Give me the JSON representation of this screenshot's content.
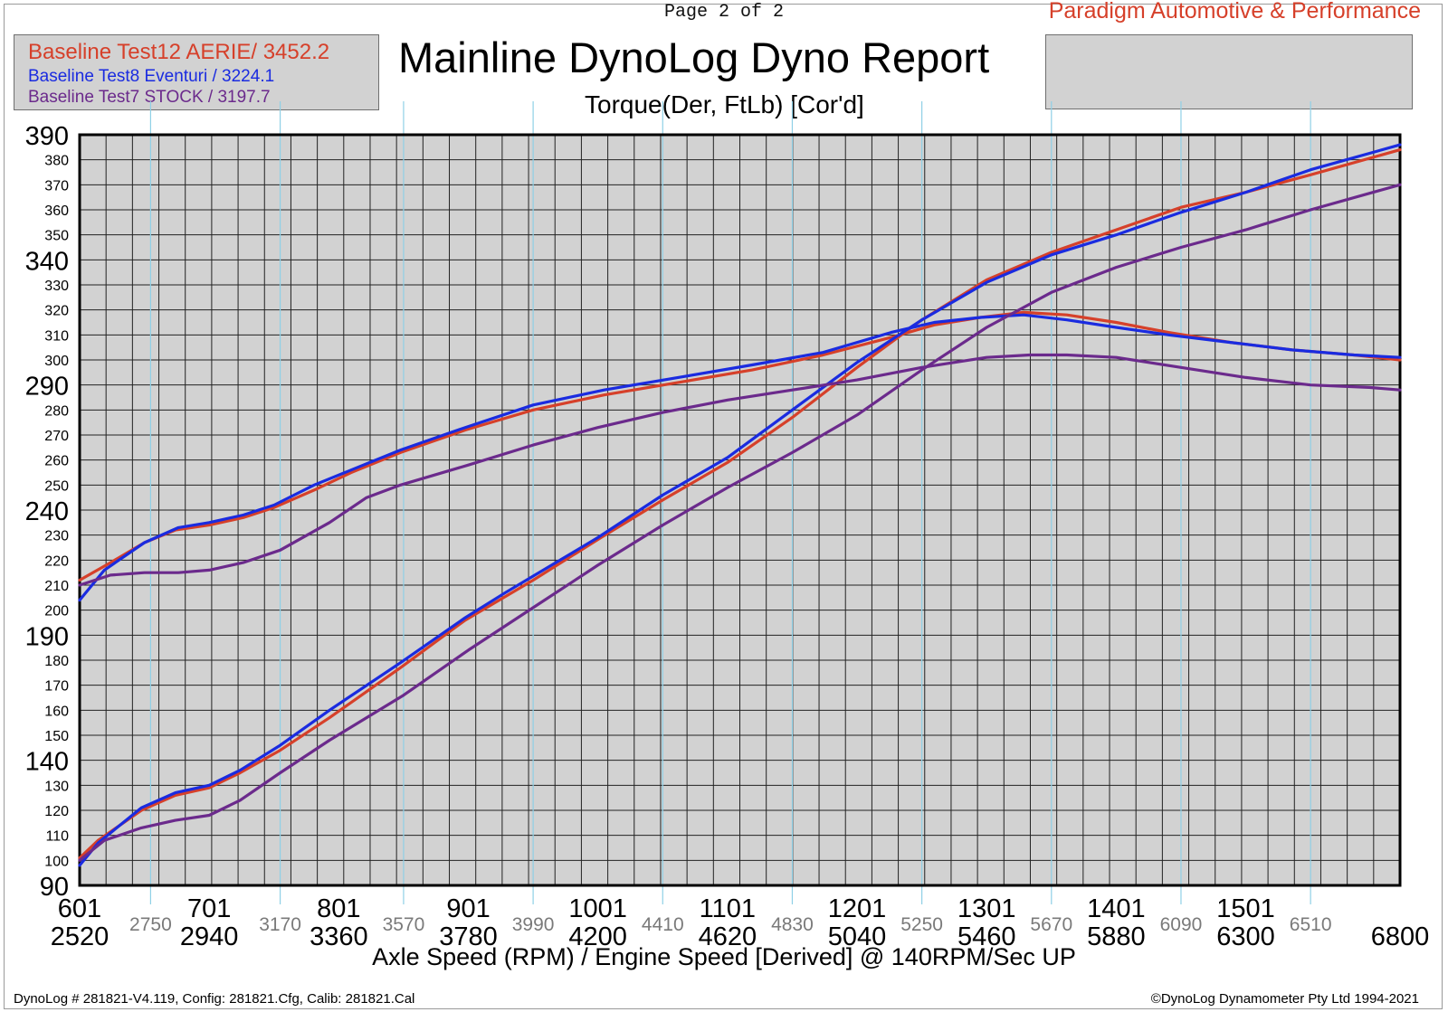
{
  "page_label": "Page 2 of 2",
  "company": "Paradigm Automotive & Performance",
  "title": "Mainline DynoLog Dyno Report",
  "footer_left": "DynoLog # 281821-V4.119, Config: 281821.Cfg, Calib: 281821.Cal",
  "footer_right": "©DynoLog Dynamometer Pty Ltd 1994-2021",
  "colors": {
    "red": "#d6402a",
    "blue": "#1a2be0",
    "purple": "#6b2a8c",
    "plot_bg": "#d2d2d2",
    "grid": "#222222",
    "ref_line": "#8fd0e6"
  },
  "legend": [
    {
      "label": "Baseline Test12 AERIE/ 3452.2",
      "color": "#d6402a"
    },
    {
      "label": "Baseline Test8 Eventuri / 3224.1",
      "color": "#1a2be0"
    },
    {
      "label": "Baseline Test7 STOCK / 3197.7",
      "color": "#6b2a8c"
    }
  ],
  "chart_data": {
    "type": "line",
    "title": "Mainline DynoLog Dyno Report",
    "subtitle": "Torque(Der, FtLb) [Cor'd]",
    "xlabel": "Axle Speed (RPM) / Engine Speed [Derived] @ 140RPM/Sec UP",
    "ylabel": "",
    "xlim": [
      2520,
      6800
    ],
    "ylim": [
      90,
      390
    ],
    "y_major_ticks": [
      90,
      140,
      190,
      240,
      290,
      340,
      390
    ],
    "y_minor_ticks": [
      100,
      110,
      120,
      130,
      150,
      160,
      170,
      180,
      200,
      210,
      220,
      230,
      250,
      260,
      270,
      280,
      300,
      310,
      320,
      330,
      350,
      360,
      370,
      380
    ],
    "x_major_ticks": [
      {
        "value": 2520,
        "axle": "601",
        "engine": "2520"
      },
      {
        "value": 2940,
        "axle": "701",
        "engine": "2940"
      },
      {
        "value": 3360,
        "axle": "801",
        "engine": "3360"
      },
      {
        "value": 3780,
        "axle": "901",
        "engine": "3780"
      },
      {
        "value": 4200,
        "axle": "1001",
        "engine": "4200"
      },
      {
        "value": 4620,
        "axle": "1101",
        "engine": "4620"
      },
      {
        "value": 5040,
        "axle": "1201",
        "engine": "5040"
      },
      {
        "value": 5460,
        "axle": "1301",
        "engine": "5460"
      },
      {
        "value": 5880,
        "axle": "1401",
        "engine": "5880"
      },
      {
        "value": 6300,
        "axle": "1501",
        "engine": "6300"
      },
      {
        "value": 6800,
        "axle": "",
        "engine": "6800"
      }
    ],
    "x_ref_ticks": [
      2750,
      3170,
      3570,
      3990,
      4410,
      4830,
      5250,
      5670,
      6090,
      6510
    ],
    "grid": true,
    "legend_position": "top-left",
    "series": [
      {
        "name": "Baseline Test12 AERIE/ 3452.2",
        "color": "#d6402a",
        "torque": {
          "x": [
            2520,
            2620,
            2730,
            2830,
            2940,
            3050,
            3150,
            3280,
            3400,
            3560,
            3770,
            3990,
            4220,
            4460,
            4700,
            4930,
            5150,
            5290,
            5440,
            5580,
            5720,
            5880,
            6050,
            6250,
            6450,
            6650,
            6800
          ],
          "y": [
            212,
            219,
            227,
            232,
            234,
            237,
            241,
            248,
            255,
            263,
            272,
            280,
            286,
            291,
            296,
            302,
            309,
            314,
            317,
            319,
            318,
            315,
            311,
            307,
            304,
            302,
            300
          ]
        },
        "power": {
          "x": [
            2520,
            2580,
            2720,
            2830,
            2940,
            3040,
            3170,
            3330,
            3560,
            3770,
            3990,
            4210,
            4410,
            4620,
            4830,
            5040,
            5250,
            5460,
            5670,
            5880,
            6090,
            6300,
            6510,
            6800
          ],
          "y": [
            101,
            108,
            120,
            126,
            129,
            135,
            144,
            157,
            177,
            196,
            212,
            229,
            244,
            259,
            277,
            297,
            316,
            332,
            343,
            352,
            361,
            367,
            374,
            384
          ]
        }
      },
      {
        "name": "Baseline Test8 Eventuri / 3224.1",
        "color": "#1a2be0",
        "torque": {
          "x": [
            2520,
            2600,
            2730,
            2840,
            2940,
            3050,
            3150,
            3280,
            3400,
            3560,
            3770,
            3990,
            4220,
            4460,
            4700,
            4930,
            5150,
            5290,
            5440,
            5580,
            5720,
            5880,
            6050,
            6250,
            6450,
            6650,
            6800
          ],
          "y": [
            204,
            216,
            227,
            233,
            235,
            238,
            242,
            250,
            256,
            264,
            273,
            282,
            288,
            293,
            298,
            303,
            311,
            315,
            317,
            318,
            316,
            313,
            310,
            307,
            304,
            302,
            301
          ]
        },
        "power": {
          "x": [
            2520,
            2580,
            2720,
            2830,
            2940,
            3040,
            3170,
            3330,
            3560,
            3770,
            3900,
            4200,
            4410,
            4620,
            4830,
            5040,
            5250,
            5460,
            5670,
            5880,
            6090,
            6300,
            6510,
            6800
          ],
          "y": [
            98,
            107,
            121,
            127,
            130,
            136,
            146,
            160,
            179,
            197,
            207,
            229,
            246,
            261,
            280,
            299,
            316,
            331,
            342,
            350,
            359,
            367,
            376,
            386
          ]
        }
      },
      {
        "name": "Baseline Test7 STOCK / 3197.7",
        "color": "#6b2a8c",
        "torque": {
          "x": [
            2520,
            2620,
            2730,
            2840,
            2940,
            3050,
            3170,
            3330,
            3450,
            3560,
            3780,
            3990,
            4200,
            4410,
            4620,
            4830,
            5040,
            5250,
            5460,
            5600,
            5720,
            5880,
            6090,
            6300,
            6510,
            6700,
            6800
          ],
          "y": [
            210,
            214,
            215,
            215,
            216,
            219,
            224,
            235,
            245,
            250,
            258,
            266,
            273,
            279,
            284,
            288,
            292,
            297,
            301,
            302,
            302,
            301,
            297,
            293,
            290,
            289,
            288
          ]
        },
        "power": {
          "x": [
            2520,
            2600,
            2720,
            2830,
            2940,
            3040,
            3170,
            3330,
            3450,
            3570,
            3780,
            3990,
            4200,
            4410,
            4620,
            4830,
            5040,
            5250,
            5460,
            5670,
            5880,
            6090,
            6300,
            6510,
            6800
          ],
          "y": [
            100,
            108,
            113,
            116,
            118,
            124,
            135,
            148,
            157,
            166,
            184,
            201,
            218,
            234,
            249,
            263,
            278,
            296,
            313,
            327,
            337,
            345,
            352,
            360,
            370
          ]
        }
      }
    ]
  }
}
